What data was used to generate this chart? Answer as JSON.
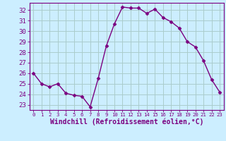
{
  "x": [
    0,
    1,
    2,
    3,
    4,
    5,
    6,
    7,
    8,
    9,
    10,
    11,
    12,
    13,
    14,
    15,
    16,
    17,
    18,
    19,
    20,
    21,
    22,
    23
  ],
  "y": [
    26.0,
    25.0,
    24.7,
    25.0,
    24.1,
    23.9,
    23.8,
    22.8,
    25.5,
    28.6,
    30.7,
    32.3,
    32.2,
    32.2,
    31.7,
    32.1,
    31.3,
    30.9,
    30.3,
    29.0,
    28.5,
    27.2,
    25.4,
    24.2
  ],
  "line_color": "#7b0080",
  "marker": "D",
  "marker_color": "#7b0080",
  "bg_color": "#cceeff",
  "grid_color": "#aacccc",
  "xlabel": "Windchill (Refroidissement éolien,°C)",
  "ylabel": "",
  "ylim": [
    22.5,
    32.7
  ],
  "xlim": [
    -0.5,
    23.5
  ],
  "yticks": [
    23,
    24,
    25,
    26,
    27,
    28,
    29,
    30,
    31,
    32
  ],
  "xticks": [
    0,
    1,
    2,
    3,
    4,
    5,
    6,
    7,
    8,
    9,
    10,
    11,
    12,
    13,
    14,
    15,
    16,
    17,
    18,
    19,
    20,
    21,
    22,
    23
  ],
  "title_color": "#7b0080",
  "axis_color": "#7b0080",
  "tick_color": "#7b0080",
  "xlabel_fontsize": 7.0,
  "ytick_fontsize": 6.5,
  "xtick_fontsize": 5.2
}
